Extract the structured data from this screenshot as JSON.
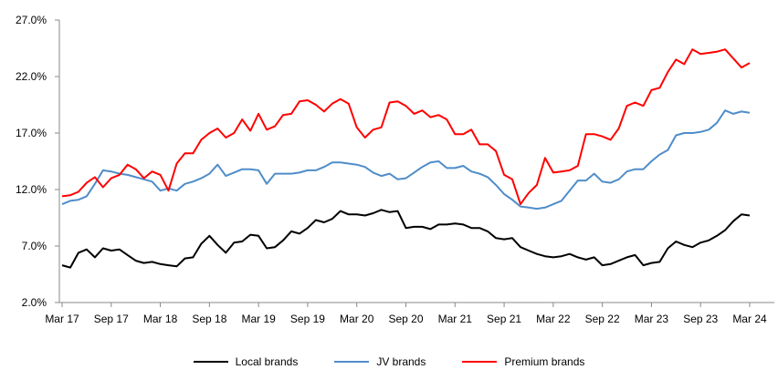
{
  "chart_data": {
    "type": "line",
    "title": "",
    "xlabel": "",
    "ylabel": "",
    "ylim": [
      2.0,
      27.0
    ],
    "yticks": [
      "2.0%",
      "7.0%",
      "12.0%",
      "17.0%",
      "22.0%",
      "27.0%"
    ],
    "xticks": [
      "Mar 17",
      "Sep 17",
      "Mar 18",
      "Sep 18",
      "Mar 19",
      "Sep 19",
      "Mar 20",
      "Sep 20",
      "Mar 21",
      "Sep 21",
      "Mar 22",
      "Sep 22",
      "Mar 23",
      "Sep 23",
      "Mar 24"
    ],
    "x_range": [
      "Mar 17",
      "Mar 24"
    ],
    "frequency": "monthly",
    "grid": false,
    "legend_position": "bottom",
    "series": [
      {
        "name": "Local brands",
        "color": "#000000",
        "values": [
          5.3,
          5.1,
          6.4,
          6.7,
          6.0,
          6.8,
          6.6,
          6.7,
          6.2,
          5.7,
          5.5,
          5.6,
          5.4,
          5.3,
          5.2,
          5.9,
          6.0,
          7.2,
          7.9,
          7.1,
          6.4,
          7.3,
          7.4,
          8.0,
          7.9,
          6.8,
          6.9,
          7.5,
          8.3,
          8.1,
          8.6,
          9.3,
          9.1,
          9.4,
          10.1,
          9.8,
          9.8,
          9.7,
          9.9,
          10.2,
          10.0,
          10.1,
          8.6,
          8.7,
          8.7,
          8.5,
          8.9,
          8.9,
          9.0,
          8.9,
          8.6,
          8.6,
          8.3,
          7.7,
          7.6,
          7.7,
          6.9,
          6.6,
          6.3,
          6.1,
          6.0,
          6.1,
          6.3,
          6.0,
          5.8,
          6.0,
          5.3,
          5.4,
          5.7,
          6.0,
          6.2,
          5.3,
          5.5,
          5.6,
          6.8,
          7.4,
          7.1,
          6.9,
          7.3,
          7.5,
          7.9,
          8.4,
          9.2,
          9.8,
          9.7
        ]
      },
      {
        "name": "JV brands",
        "color": "#4f8dc9",
        "values": [
          10.7,
          11.0,
          11.1,
          11.4,
          12.5,
          13.7,
          13.6,
          13.4,
          13.3,
          13.1,
          12.9,
          12.7,
          11.9,
          12.1,
          11.9,
          12.5,
          12.7,
          13.0,
          13.4,
          14.2,
          13.2,
          13.5,
          13.8,
          13.8,
          13.7,
          12.5,
          13.4,
          13.4,
          13.4,
          13.5,
          13.7,
          13.7,
          14.0,
          14.4,
          14.4,
          14.3,
          14.2,
          14.0,
          13.5,
          13.2,
          13.4,
          12.9,
          13.0,
          13.5,
          14.0,
          14.4,
          14.5,
          13.9,
          13.9,
          14.1,
          13.6,
          13.4,
          13.1,
          12.4,
          11.6,
          11.1,
          10.5,
          10.4,
          10.3,
          10.4,
          10.7,
          11.0,
          11.9,
          12.8,
          12.8,
          13.4,
          12.7,
          12.6,
          12.9,
          13.6,
          13.8,
          13.8,
          14.5,
          15.1,
          15.5,
          16.8,
          17.0,
          17.0,
          17.1,
          17.3,
          17.9,
          19.0,
          18.7,
          18.9,
          18.8
        ]
      },
      {
        "name": "Premium brands",
        "color": "#ff0000",
        "values": [
          11.4,
          11.5,
          11.8,
          12.6,
          13.1,
          12.2,
          13.0,
          13.3,
          14.2,
          13.8,
          13.0,
          13.6,
          13.3,
          11.9,
          14.3,
          15.2,
          15.2,
          16.4,
          17.0,
          17.4,
          16.6,
          17.0,
          18.2,
          17.2,
          18.7,
          17.3,
          17.6,
          18.6,
          18.7,
          19.8,
          19.9,
          19.5,
          18.9,
          19.6,
          20.0,
          19.6,
          17.5,
          16.6,
          17.3,
          17.5,
          19.7,
          19.8,
          19.4,
          18.7,
          19.0,
          18.4,
          18.6,
          18.2,
          16.9,
          16.9,
          17.3,
          16.0,
          16.0,
          15.4,
          13.3,
          12.9,
          10.7,
          11.7,
          12.4,
          14.8,
          13.5,
          13.6,
          13.7,
          14.1,
          16.9,
          16.9,
          16.7,
          16.4,
          17.4,
          19.4,
          19.7,
          19.4,
          20.8,
          21.0,
          22.4,
          23.5,
          23.1,
          24.4,
          24.0,
          24.1,
          24.2,
          24.4,
          23.6,
          22.8,
          23.2
        ]
      }
    ]
  }
}
